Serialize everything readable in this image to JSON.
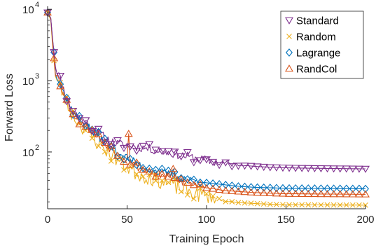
{
  "chart_data": {
    "type": "line",
    "title": "",
    "xlabel": "Training Epoch",
    "ylabel": "Forward Loss",
    "xlim": [
      0,
      200
    ],
    "ylim": [
      16,
      11000
    ],
    "yscale": "log",
    "xticks": [
      0,
      50,
      100,
      150,
      200
    ],
    "yticks": [
      {
        "value": 100,
        "base": "10",
        "exp": "2"
      },
      {
        "value": 1000,
        "base": "10",
        "exp": "3"
      },
      {
        "value": 10000,
        "base": "10",
        "exp": "4"
      }
    ],
    "grid": false,
    "legend_position": "top-right",
    "series": [
      {
        "name": "Standard",
        "color": "#7E2F8E",
        "marker": "triangle-down",
        "anchors": [
          [
            0,
            9000
          ],
          [
            2,
            7500
          ],
          [
            5,
            1600
          ],
          [
            8,
            1050
          ],
          [
            12,
            560
          ],
          [
            15,
            420
          ],
          [
            20,
            300
          ],
          [
            25,
            250
          ],
          [
            30,
            200
          ],
          [
            35,
            165
          ],
          [
            40,
            140
          ],
          [
            45,
            128
          ],
          [
            50,
            125
          ],
          [
            60,
            115
          ],
          [
            70,
            105
          ],
          [
            80,
            95
          ],
          [
            90,
            84
          ],
          [
            100,
            76
          ],
          [
            110,
            70
          ],
          [
            120,
            66
          ],
          [
            130,
            63
          ],
          [
            140,
            61
          ],
          [
            150,
            60
          ],
          [
            170,
            59
          ],
          [
            200,
            58
          ]
        ],
        "noise": 0.15,
        "noise_until": 110,
        "seed": 11
      },
      {
        "name": "Random",
        "color": "#EDB120",
        "marker": "x",
        "anchors": [
          [
            0,
            9000
          ],
          [
            2,
            7000
          ],
          [
            5,
            1100
          ],
          [
            8,
            800
          ],
          [
            12,
            480
          ],
          [
            15,
            350
          ],
          [
            20,
            250
          ],
          [
            25,
            190
          ],
          [
            30,
            145
          ],
          [
            35,
            115
          ],
          [
            40,
            92
          ],
          [
            45,
            75
          ],
          [
            50,
            62
          ],
          [
            55,
            52
          ],
          [
            60,
            46
          ],
          [
            65,
            43
          ],
          [
            70,
            40
          ],
          [
            80,
            33
          ],
          [
            90,
            27
          ],
          [
            100,
            24
          ],
          [
            110,
            21
          ],
          [
            120,
            19.5
          ],
          [
            130,
            19
          ],
          [
            140,
            18.5
          ],
          [
            150,
            18.2
          ],
          [
            200,
            18
          ]
        ],
        "noise": 0.25,
        "noise_until": 100,
        "seed": 23
      },
      {
        "name": "Lagrange",
        "color": "#0072BD",
        "marker": "diamond",
        "anchors": [
          [
            0,
            9000
          ],
          [
            2,
            7500
          ],
          [
            5,
            1350
          ],
          [
            8,
            950
          ],
          [
            12,
            540
          ],
          [
            15,
            400
          ],
          [
            20,
            285
          ],
          [
            25,
            230
          ],
          [
            30,
            180
          ],
          [
            35,
            145
          ],
          [
            40,
            118
          ],
          [
            45,
            98
          ],
          [
            50,
            82
          ],
          [
            55,
            70
          ],
          [
            60,
            62
          ],
          [
            65,
            57
          ],
          [
            70,
            52
          ],
          [
            80,
            46
          ],
          [
            90,
            41
          ],
          [
            100,
            37
          ],
          [
            110,
            35
          ],
          [
            120,
            33
          ],
          [
            130,
            32
          ],
          [
            140,
            31.5
          ],
          [
            150,
            31
          ],
          [
            200,
            30.5
          ]
        ],
        "noise": 0.15,
        "noise_until": 85,
        "seed": 37
      },
      {
        "name": "RandCol",
        "color": "#D95319",
        "marker": "triangle-up",
        "anchors": [
          [
            0,
            9000
          ],
          [
            2,
            7500
          ],
          [
            5,
            1300
          ],
          [
            8,
            900
          ],
          [
            12,
            520
          ],
          [
            15,
            380
          ],
          [
            20,
            275
          ],
          [
            25,
            225
          ],
          [
            30,
            175
          ],
          [
            35,
            140
          ],
          [
            40,
            112
          ],
          [
            45,
            92
          ],
          [
            50,
            76
          ],
          [
            55,
            65
          ],
          [
            60,
            58
          ],
          [
            65,
            53
          ],
          [
            70,
            48
          ],
          [
            80,
            42
          ],
          [
            90,
            36
          ],
          [
            100,
            32
          ],
          [
            110,
            29
          ],
          [
            120,
            28
          ],
          [
            130,
            27
          ],
          [
            140,
            26.5
          ],
          [
            150,
            26
          ],
          [
            200,
            25.5
          ]
        ],
        "noise": 0.15,
        "noise_until": 90,
        "seed": 53,
        "spikes": [
          [
            51,
            180
          ],
          [
            79,
            58
          ]
        ]
      }
    ]
  }
}
